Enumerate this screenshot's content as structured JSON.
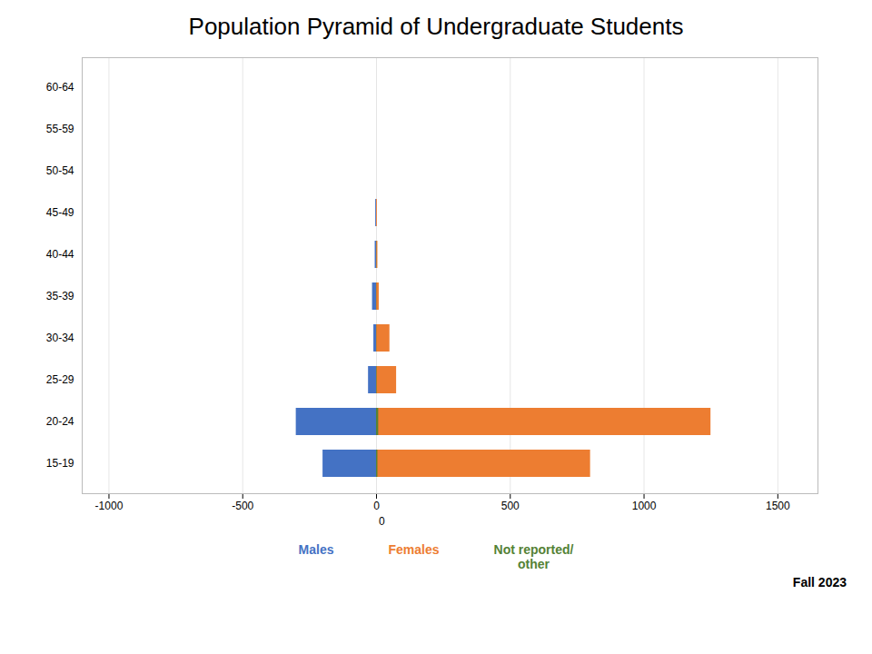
{
  "chart_data": {
    "type": "bar",
    "orientation": "horizontal",
    "title": "Population Pyramid of Undergraduate Students",
    "subtitle": "Fall 2023",
    "categories": [
      "15-19",
      "20-24",
      "25-29",
      "30-34",
      "35-39",
      "40-44",
      "45-49",
      "50-54",
      "55-59",
      "60-64"
    ],
    "series": [
      {
        "name": "Males",
        "color": "#4472C4",
        "values": [
          -200,
          -300,
          -30,
          -10,
          -15,
          -5,
          -3,
          0,
          0,
          0
        ]
      },
      {
        "name": "Females",
        "color": "#ED7D31",
        "values": [
          800,
          1250,
          75,
          50,
          10,
          5,
          3,
          0,
          0,
          0
        ]
      },
      {
        "name": "Not reported/\nother",
        "color": "#548235",
        "values": [
          5,
          8,
          2,
          1,
          1,
          1,
          0,
          0,
          0,
          0
        ]
      }
    ],
    "xlim": [
      -1100,
      1650
    ],
    "xticks": [
      -1000,
      -500,
      0,
      500,
      1000,
      1500
    ],
    "grid": true,
    "legend": "bottom",
    "annotations": [
      {
        "text": "0",
        "x": 20
      }
    ]
  }
}
